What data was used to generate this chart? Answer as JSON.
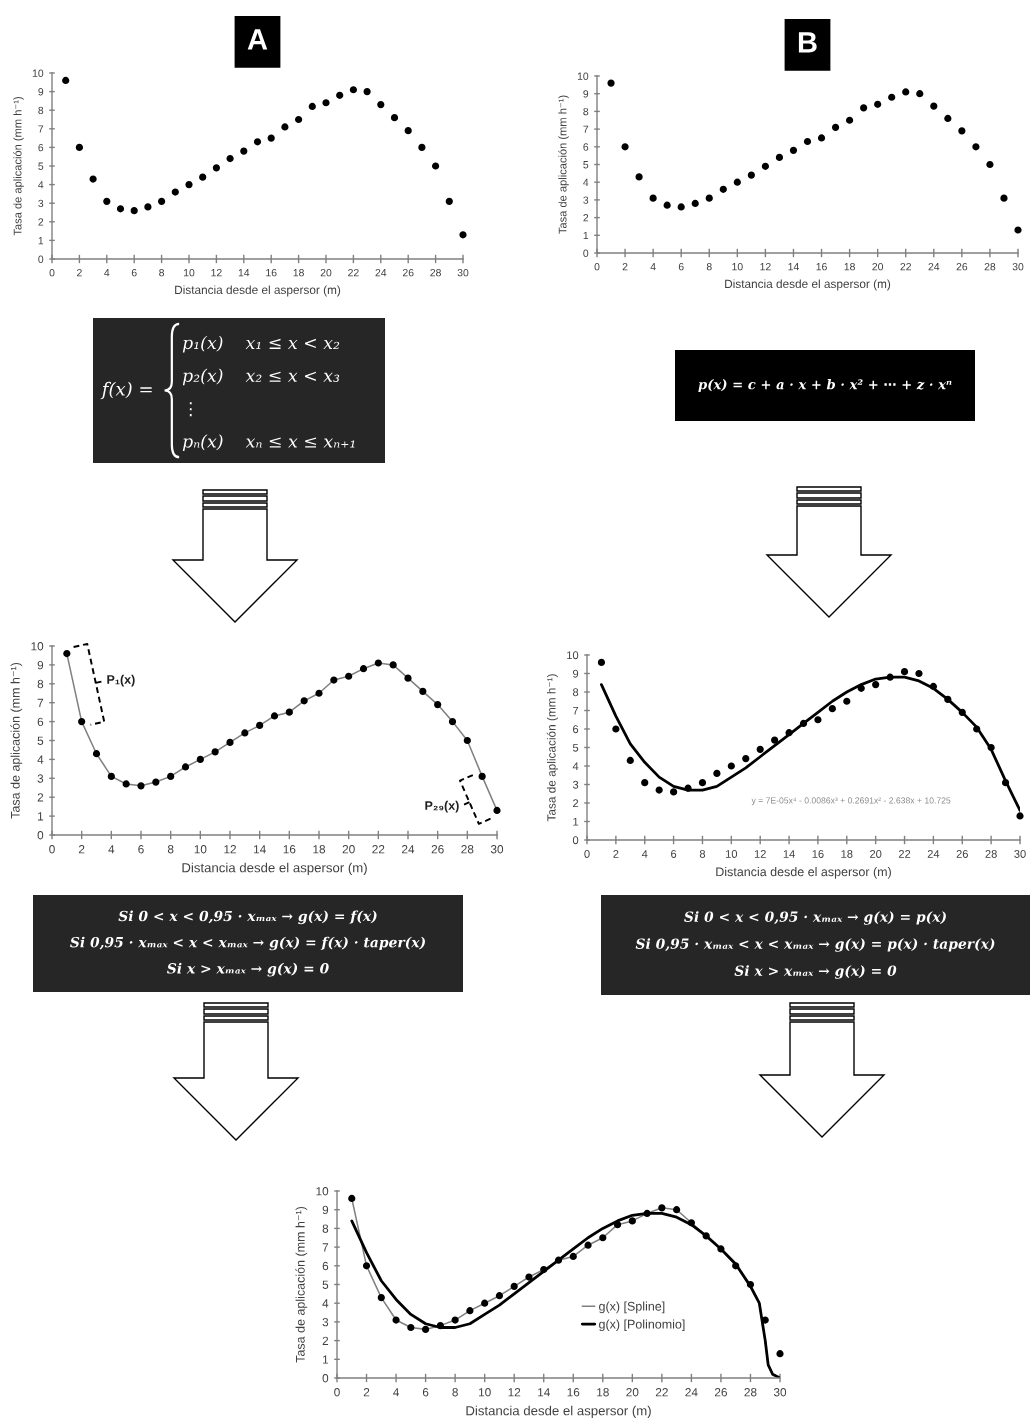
{
  "chart_data": [
    {
      "type": "scatter",
      "title": "A",
      "xlabel": "Distancia desde el aspersor (m)",
      "ylabel": "Tasa de aplicación (mm h⁻¹)",
      "x": [
        1,
        2,
        3,
        4,
        5,
        6,
        7,
        8,
        9,
        10,
        11,
        12,
        13,
        14,
        15,
        16,
        17,
        18,
        19,
        20,
        21,
        22,
        23,
        24,
        25,
        26,
        27,
        28,
        29,
        30
      ],
      "series": [
        {
          "color": "#000000",
          "values": [
            9.6,
            6.0,
            4.3,
            3.1,
            2.7,
            2.6,
            2.8,
            3.1,
            3.6,
            4.0,
            4.4,
            4.9,
            5.4,
            5.8,
            6.3,
            6.5,
            7.1,
            7.5,
            8.2,
            8.4,
            8.8,
            9.1,
            9.0,
            8.3,
            7.6,
            6.9,
            6.0,
            5.0,
            3.1,
            1.3
          ]
        }
      ],
      "marker": "circle",
      "xlim": [
        0,
        30
      ],
      "ylim": [
        0,
        10
      ],
      "xticks": [
        0,
        2,
        4,
        6,
        8,
        10,
        12,
        14,
        16,
        18,
        20,
        22,
        24,
        26,
        28,
        30
      ],
      "yticks": [
        0,
        1,
        2,
        3,
        4,
        5,
        6,
        7,
        8,
        9,
        10
      ]
    },
    {
      "type": "scatter",
      "title": "B",
      "xlabel": "Distancia desde el aspersor (m)",
      "ylabel": "Tasa de aplicación (mm h⁻¹)",
      "x": [
        1,
        2,
        3,
        4,
        5,
        6,
        7,
        8,
        9,
        10,
        11,
        12,
        13,
        14,
        15,
        16,
        17,
        18,
        19,
        20,
        21,
        22,
        23,
        24,
        25,
        26,
        27,
        28,
        29,
        30
      ],
      "series": [
        {
          "color": "#000000",
          "values": [
            9.6,
            6.0,
            4.3,
            3.1,
            2.7,
            2.6,
            2.8,
            3.1,
            3.6,
            4.0,
            4.4,
            4.9,
            5.4,
            5.8,
            6.3,
            6.5,
            7.1,
            7.5,
            8.2,
            8.4,
            8.8,
            9.1,
            9.0,
            8.3,
            7.6,
            6.9,
            6.0,
            5.0,
            3.1,
            1.3
          ]
        }
      ],
      "marker": "circle",
      "xlim": [
        0,
        30
      ],
      "ylim": [
        0,
        10
      ],
      "xticks": [
        0,
        2,
        4,
        6,
        8,
        10,
        12,
        14,
        16,
        18,
        20,
        22,
        24,
        26,
        28,
        30
      ],
      "yticks": [
        0,
        1,
        2,
        3,
        4,
        5,
        6,
        7,
        8,
        9,
        10
      ]
    },
    {
      "type": "other",
      "title": "f(x) =",
      "color": "#262626",
      "annotations": [
        "p₁(x)    x₁ ≤ x < x₂",
        "p₂(x)    x₂ ≤ x < x₃",
        "⋮",
        "pₙ(x)    xₙ ≤ x ≤ xₙ₊₁"
      ]
    },
    {
      "type": "other",
      "color": "#000000",
      "annotations": [
        "p(x) = c + a · x + b · x² + ⋯ + z · xⁿ"
      ]
    },
    {
      "type": "line",
      "xlabel": "Distancia desde el aspersor (m)",
      "ylabel": "Tasa de aplicación (mm h⁻¹)",
      "x": [
        1,
        2,
        3,
        4,
        5,
        6,
        7,
        8,
        9,
        10,
        11,
        12,
        13,
        14,
        15,
        16,
        17,
        18,
        19,
        20,
        21,
        22,
        23,
        24,
        25,
        26,
        27,
        28,
        29,
        30
      ],
      "series": [
        {
          "color": "#808080",
          "values": [
            9.6,
            6.0,
            4.3,
            3.1,
            2.7,
            2.6,
            2.8,
            3.1,
            3.6,
            4.0,
            4.4,
            4.9,
            5.4,
            5.8,
            6.3,
            6.5,
            7.1,
            7.5,
            8.2,
            8.4,
            8.8,
            9.1,
            9.0,
            8.3,
            7.6,
            6.9,
            6.0,
            5.0,
            3.1,
            1.3
          ]
        },
        {
          "type": "scatter",
          "marker": "circle",
          "color": "#000000",
          "values": [
            9.6,
            6.0,
            4.3,
            3.1,
            2.7,
            2.6,
            2.8,
            3.1,
            3.6,
            4.0,
            4.4,
            4.9,
            5.4,
            5.8,
            6.3,
            6.5,
            7.1,
            7.5,
            8.2,
            8.4,
            8.8,
            9.1,
            9.0,
            8.3,
            7.6,
            6.9,
            6.0,
            5.0,
            3.1,
            1.3
          ]
        }
      ],
      "annotations": [
        {
          "text": "P₁(x)",
          "x": 1.5,
          "y": 7.8
        },
        {
          "text": "P₂₉(x)",
          "x": 29.5,
          "y": 2.2
        }
      ],
      "xlim": [
        0,
        30
      ],
      "ylim": [
        0,
        10
      ],
      "xticks": [
        0,
        2,
        4,
        6,
        8,
        10,
        12,
        14,
        16,
        18,
        20,
        22,
        24,
        26,
        28,
        30
      ],
      "yticks": [
        0,
        1,
        2,
        3,
        4,
        5,
        6,
        7,
        8,
        9,
        10
      ]
    },
    {
      "type": "scatter",
      "xlabel": "Distancia desde el aspersor (m)",
      "ylabel": "Tasa de aplicación (mm h⁻¹)",
      "x": [
        1,
        2,
        3,
        4,
        5,
        6,
        7,
        8,
        9,
        10,
        11,
        12,
        13,
        14,
        15,
        16,
        17,
        18,
        19,
        20,
        21,
        22,
        23,
        24,
        25,
        26,
        27,
        28,
        29,
        30
      ],
      "series": [
        {
          "marker": "circle",
          "color": "#000000",
          "values": [
            9.6,
            6.0,
            4.3,
            3.1,
            2.7,
            2.6,
            2.8,
            3.1,
            3.6,
            4.0,
            4.4,
            4.9,
            5.4,
            5.8,
            6.3,
            6.5,
            7.1,
            7.5,
            8.2,
            8.4,
            8.8,
            9.1,
            9.0,
            8.3,
            7.6,
            6.9,
            6.0,
            5.0,
            3.1,
            1.3
          ]
        },
        {
          "type": "line",
          "color": "#000000",
          "values": [
            8.4,
            6.7,
            5.2,
            4.2,
            3.4,
            2.9,
            2.7,
            2.7,
            2.9,
            3.4,
            3.9,
            4.5,
            5.1,
            5.7,
            6.3,
            6.9,
            7.5,
            8.0,
            8.4,
            8.7,
            8.8,
            8.8,
            8.6,
            8.2,
            7.6,
            6.9,
            6.1,
            4.9,
            3.2,
            1.6
          ]
        }
      ],
      "annotations": [
        "y = 7E-05x⁴ - 0.0086x³ + 0.2691x² - 2.638x + 10.725"
      ],
      "xlim": [
        0,
        30
      ],
      "ylim": [
        0,
        10
      ],
      "xticks": [
        0,
        2,
        4,
        6,
        8,
        10,
        12,
        14,
        16,
        18,
        20,
        22,
        24,
        26,
        28,
        30
      ],
      "yticks": [
        0,
        1,
        2,
        3,
        4,
        5,
        6,
        7,
        8,
        9,
        10
      ]
    },
    {
      "type": "other",
      "color": "#262626",
      "annotations": [
        "Si 0 < x < 0,95 · xₘₐₓ → g(x) = f(x)",
        "Si 0,95 · xₘₐₓ < x < xₘₐₓ → g(x) = f(x) · taper(x)",
        "Si x > xₘₐₓ → g(x) = 0"
      ]
    },
    {
      "type": "other",
      "color": "#262626",
      "annotations": [
        "Si 0 < x < 0,95 · xₘₐₓ → g(x) = p(x)",
        "Si 0,95 · xₘₐₓ < x < xₘₐₓ → g(x) = p(x) · taper(x)",
        "Si x > xₘₐₓ → g(x) = 0"
      ]
    },
    {
      "type": "line",
      "xlabel": "Distancia desde el aspersor (m)",
      "ylabel": "Tasa de aplicación (mm h⁻¹)",
      "x": [
        1,
        2,
        3,
        4,
        5,
        6,
        7,
        8,
        9,
        10,
        11,
        12,
        13,
        14,
        15,
        16,
        17,
        18,
        19,
        20,
        21,
        22,
        23,
        24,
        25,
        26,
        27,
        28,
        29,
        30
      ],
      "series": [
        {
          "name": "g(x) [Spline]",
          "color": "#808080",
          "x": [
            1,
            2,
            3,
            4,
            5,
            6,
            7,
            8,
            9,
            10,
            11,
            12,
            13,
            14,
            15,
            16,
            17,
            18,
            19,
            20,
            21,
            22,
            23,
            24,
            25,
            26,
            27,
            28,
            28.6,
            29,
            29.2,
            29.5,
            30
          ],
          "values": [
            9.6,
            6.0,
            4.3,
            3.1,
            2.7,
            2.6,
            2.8,
            3.1,
            3.6,
            4.0,
            4.4,
            4.9,
            5.4,
            5.8,
            6.3,
            6.5,
            7.1,
            7.5,
            8.2,
            8.4,
            8.8,
            9.1,
            9.0,
            8.3,
            7.6,
            6.9,
            6.0,
            5.0,
            4.0,
            2.0,
            0.7,
            0.2,
            0.0
          ]
        },
        {
          "name": "g(x) [Polinomio]",
          "color": "#000000",
          "x": [
            1,
            2,
            3,
            4,
            5,
            6,
            7,
            8,
            9,
            10,
            11,
            12,
            13,
            14,
            15,
            16,
            17,
            18,
            19,
            20,
            21,
            22,
            23,
            24,
            25,
            26,
            27,
            28,
            28.6,
            29,
            29.2,
            29.5,
            30
          ],
          "values": [
            8.4,
            6.7,
            5.2,
            4.2,
            3.4,
            2.9,
            2.7,
            2.7,
            2.9,
            3.4,
            3.9,
            4.5,
            5.1,
            5.7,
            6.3,
            6.9,
            7.5,
            8.0,
            8.4,
            8.7,
            8.8,
            8.8,
            8.6,
            8.2,
            7.6,
            6.9,
            6.1,
            4.9,
            4.0,
            2.0,
            0.7,
            0.2,
            0.0
          ]
        },
        {
          "type": "scatter",
          "marker": "circle",
          "color": "#000000",
          "values": [
            9.6,
            6.0,
            4.3,
            3.1,
            2.7,
            2.6,
            2.8,
            3.1,
            3.6,
            4.0,
            4.4,
            4.9,
            5.4,
            5.8,
            6.3,
            6.5,
            7.1,
            7.5,
            8.2,
            8.4,
            8.8,
            9.1,
            9.0,
            8.3,
            7.6,
            6.9,
            6.0,
            5.0,
            3.1,
            1.3
          ]
        }
      ],
      "legend": "center",
      "xlim": [
        0,
        30
      ],
      "ylim": [
        0,
        10
      ],
      "xticks": [
        0,
        2,
        4,
        6,
        8,
        10,
        12,
        14,
        16,
        18,
        20,
        22,
        24,
        26,
        28,
        30
      ],
      "yticks": [
        0,
        1,
        2,
        3,
        4,
        5,
        6,
        7,
        8,
        9,
        10
      ]
    }
  ]
}
